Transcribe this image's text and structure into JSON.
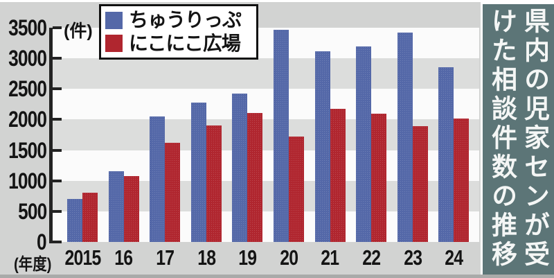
{
  "title": {
    "text": "県内の児家センが受けた相談件数の推移",
    "columns": [
      "県内の児家センが受",
      "けた相談件数の推移"
    ]
  },
  "chart_data": {
    "type": "bar",
    "title": "県内の児家センが受けた相談件数の推移",
    "unit_label": "(件)",
    "xaxis_label": "(年度)",
    "categories": [
      "2015",
      "16",
      "17",
      "18",
      "19",
      "20",
      "21",
      "22",
      "23",
      "24"
    ],
    "series": [
      {
        "name": "ちゅうりっぷ",
        "color": "#5468a8",
        "values": [
          700,
          1150,
          2050,
          2280,
          2420,
          3470,
          3120,
          3200,
          3420,
          2860
        ]
      },
      {
        "name": "にこにこ広場",
        "color": "#b0262f",
        "values": [
          810,
          1080,
          1620,
          1900,
          2110,
          1720,
          2170,
          2100,
          1890,
          2020
        ]
      }
    ],
    "ylim": [
      0,
      3500
    ],
    "yticks": [
      0,
      500,
      1000,
      1500,
      2000,
      2500,
      3000,
      3500
    ],
    "gray_bands": [
      [
        500,
        1000
      ],
      [
        1500,
        2000
      ],
      [
        2500,
        3000
      ]
    ],
    "grid": "horizontal-bands",
    "legend_position": "top-left"
  },
  "colors": {
    "outer_bg": "#d2d3d2",
    "plot_bg": "#fbfbfb",
    "stripe": "#dcdddc",
    "axis": "#232323",
    "title_bg": "#5c7577",
    "bottom_strip": "#a9aaa9",
    "bar_blue": "#5468a8",
    "bar_red": "#b0262f"
  }
}
